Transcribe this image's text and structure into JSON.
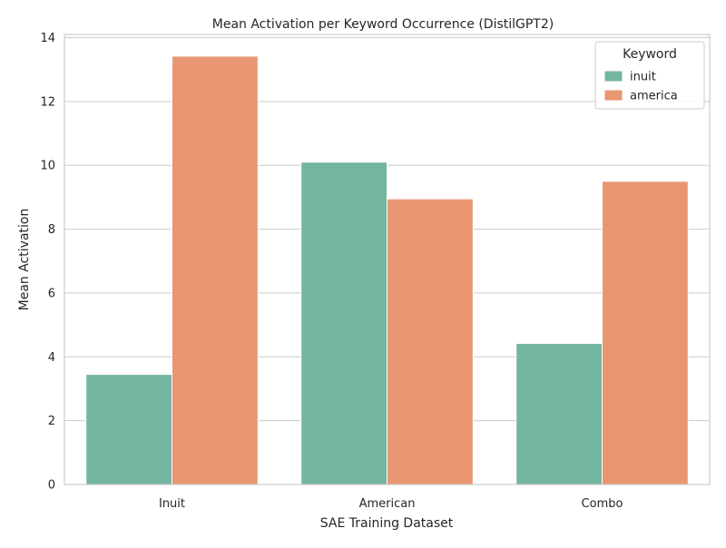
{
  "chart_data": {
    "type": "bar",
    "title": "Mean Activation per Keyword Occurrence (DistilGPT2)",
    "xlabel": "SAE Training Dataset",
    "ylabel": "Mean Activation",
    "categories": [
      "Inuit",
      "American",
      "Combo"
    ],
    "series": [
      {
        "name": "inuit",
        "values": [
          3.45,
          10.1,
          4.42
        ],
        "color": "#73b5a0"
      },
      {
        "name": "america",
        "values": [
          13.42,
          8.95,
          9.5
        ],
        "color": "#e99673"
      }
    ],
    "ylim": [
      0,
      14.1
    ],
    "yticks": [
      0,
      2,
      4,
      6,
      8,
      10,
      12,
      14
    ],
    "grid": "horizontal",
    "legend": {
      "title": "Keyword",
      "position": "top-right"
    }
  }
}
